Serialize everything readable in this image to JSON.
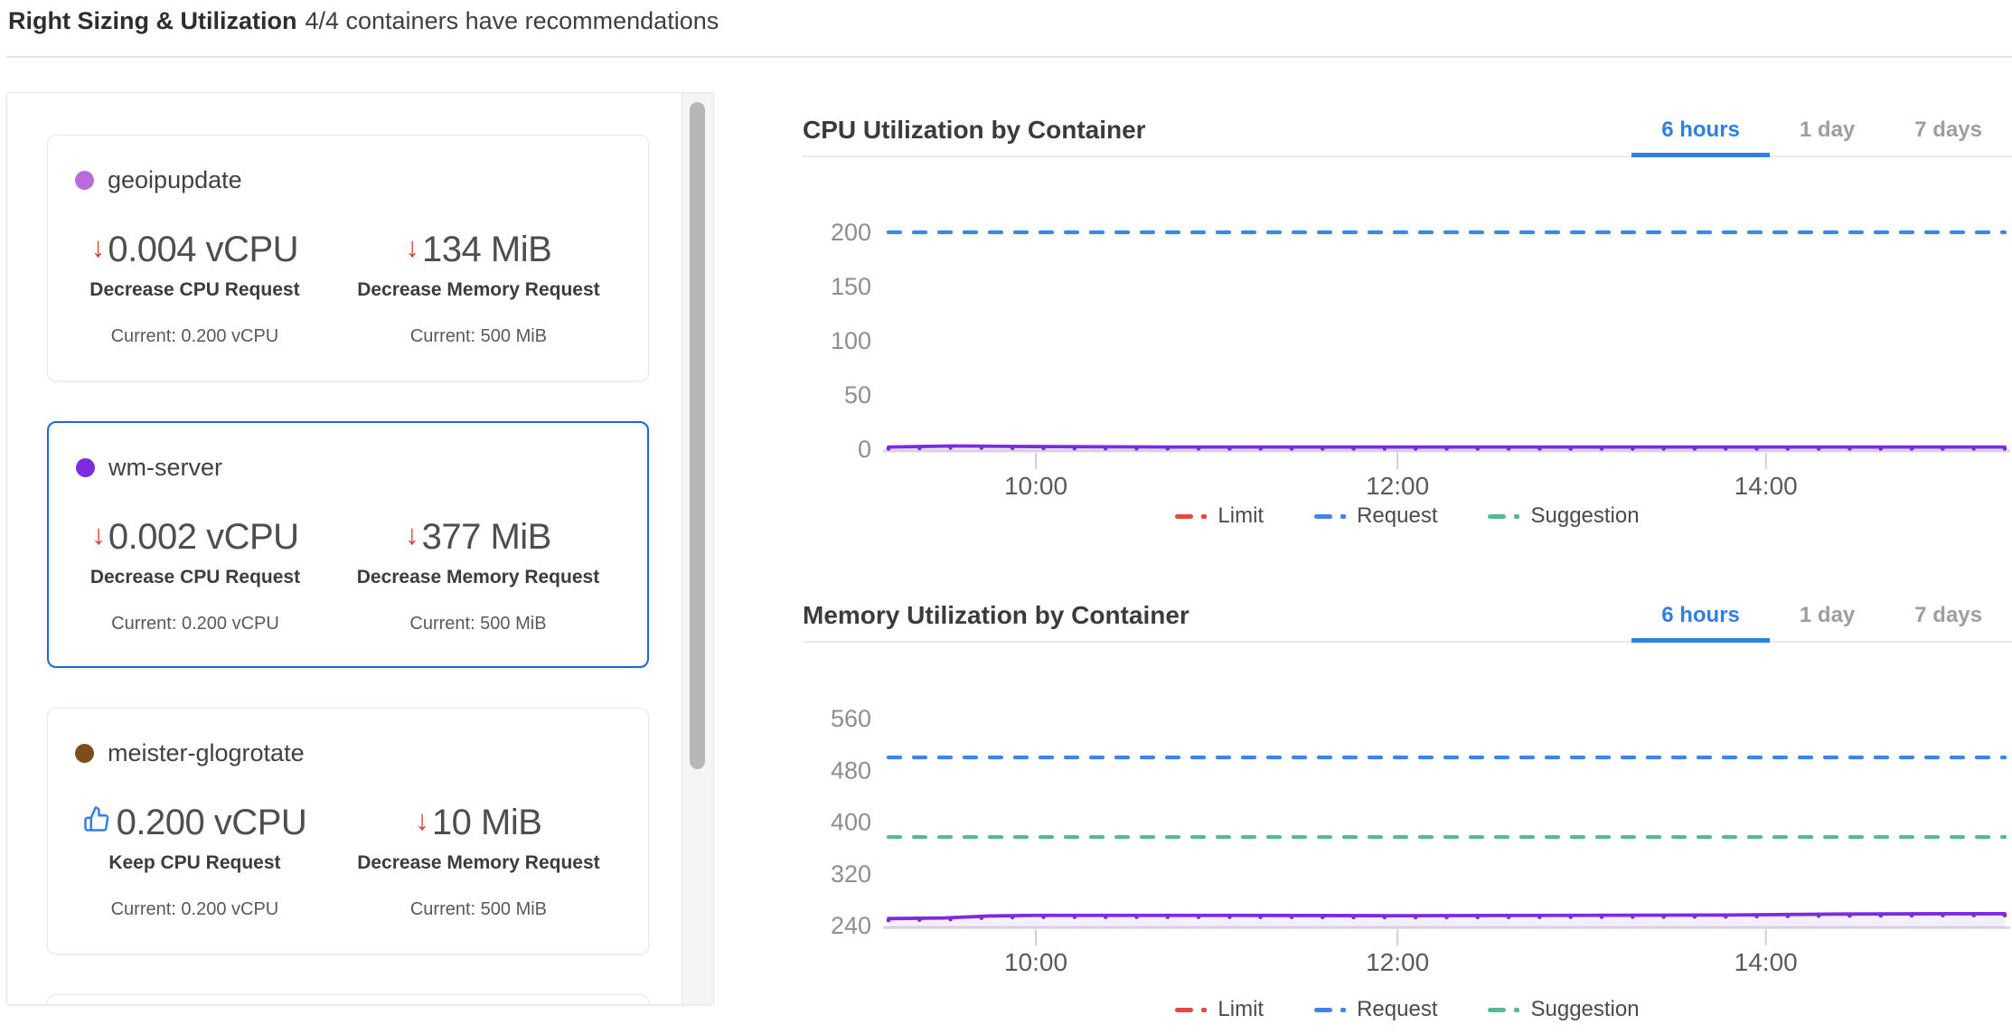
{
  "page": {
    "title": "Right Sizing & Utilization",
    "subtitle": "4/4 containers have recommendations"
  },
  "colors": {
    "accent_blue": "#2f80e4",
    "selected_card_blue": "#2065d1",
    "limit_red": "#e5493c",
    "request_blue": "#3d85e8",
    "suggestion_green": "#57ba8e",
    "series_purple": "#7c2be0"
  },
  "containers": [
    {
      "name": "geoipupdate",
      "dot_color": "#bb6bd9",
      "selected": false,
      "cpu": {
        "icon": "arrow-down",
        "value": "0.004 vCPU",
        "action": "Decrease CPU Request",
        "current": "Current: 0.200 vCPU"
      },
      "memory": {
        "icon": "arrow-down",
        "value": "134 MiB",
        "action": "Decrease Memory Request",
        "current": "Current: 500 MiB"
      }
    },
    {
      "name": "wm-server",
      "dot_color": "#7c2be0",
      "selected": true,
      "cpu": {
        "icon": "arrow-down",
        "value": "0.002 vCPU",
        "action": "Decrease CPU Request",
        "current": "Current: 0.200 vCPU"
      },
      "memory": {
        "icon": "arrow-down",
        "value": "377 MiB",
        "action": "Decrease Memory Request",
        "current": "Current: 500 MiB"
      }
    },
    {
      "name": "meister-glogrotate",
      "dot_color": "#7d4e1b",
      "selected": false,
      "cpu": {
        "icon": "thumbs-up",
        "value": "0.200 vCPU",
        "action": "Keep CPU Request",
        "current": "Current: 0.200 vCPU"
      },
      "memory": {
        "icon": "arrow-down",
        "value": "10 MiB",
        "action": "Decrease Memory Request",
        "current": "Current: 500 MiB"
      }
    }
  ],
  "charts": [
    {
      "title": "CPU Utilization by Container",
      "tabs": {
        "options": [
          "6 hours",
          "1 day",
          "7 days"
        ],
        "active": "6 hours"
      },
      "chart_data": {
        "type": "line",
        "y_ticks": [
          0,
          50,
          100,
          150,
          200
        ],
        "x_ticks": [
          {
            "label": "10:00",
            "f": 0.132
          },
          {
            "label": "12:00",
            "f": 0.456
          },
          {
            "label": "14:00",
            "f": 0.786
          }
        ],
        "reference_lines": [
          {
            "name": "Request",
            "value": 200,
            "color": "#3d85e8",
            "style": "dashed"
          }
        ],
        "series": [
          {
            "name": "wm-server",
            "color": "#7c2be0",
            "style": "solid",
            "fill": true,
            "markers": true,
            "points": [
              [
                0,
                2
              ],
              [
                0.06,
                3
              ],
              [
                0.12,
                2.5
              ],
              [
                0.25,
                2
              ],
              [
                0.4,
                2
              ],
              [
                0.55,
                2
              ],
              [
                0.7,
                2
              ],
              [
                0.85,
                2
              ],
              [
                1,
                2
              ]
            ]
          }
        ],
        "legend": [
          {
            "label": "Limit",
            "color": "#e5493c"
          },
          {
            "label": "Request",
            "color": "#3d85e8"
          },
          {
            "label": "Suggestion",
            "color": "#57ba8e"
          }
        ]
      }
    },
    {
      "title": "Memory Utilization by Container",
      "tabs": {
        "options": [
          "6 hours",
          "1 day",
          "7 days"
        ],
        "active": "6 hours"
      },
      "chart_data": {
        "type": "line",
        "y_ticks": [
          240,
          320,
          400,
          480,
          560
        ],
        "x_ticks": [
          {
            "label": "10:00",
            "f": 0.132
          },
          {
            "label": "12:00",
            "f": 0.456
          },
          {
            "label": "14:00",
            "f": 0.786
          }
        ],
        "reference_lines": [
          {
            "name": "Request",
            "value": 500,
            "color": "#3d85e8",
            "style": "dashed"
          },
          {
            "name": "Suggestion",
            "value": 377,
            "color": "#57ba8e",
            "style": "dashed"
          }
        ],
        "series": [
          {
            "name": "wm-server",
            "color": "#7c2be0",
            "style": "solid",
            "fill": true,
            "markers": true,
            "points": [
              [
                0,
                251
              ],
              [
                0.05,
                252
              ],
              [
                0.09,
                255
              ],
              [
                0.13,
                256
              ],
              [
                0.3,
                256
              ],
              [
                0.45,
                255.5
              ],
              [
                0.6,
                256
              ],
              [
                0.75,
                256.5
              ],
              [
                0.85,
                258
              ],
              [
                0.95,
                258.5
              ],
              [
                1,
                258.5
              ]
            ]
          }
        ],
        "legend": [
          {
            "label": "Limit",
            "color": "#e5493c"
          },
          {
            "label": "Request",
            "color": "#3d85e8"
          },
          {
            "label": "Suggestion",
            "color": "#57ba8e"
          }
        ]
      }
    }
  ]
}
